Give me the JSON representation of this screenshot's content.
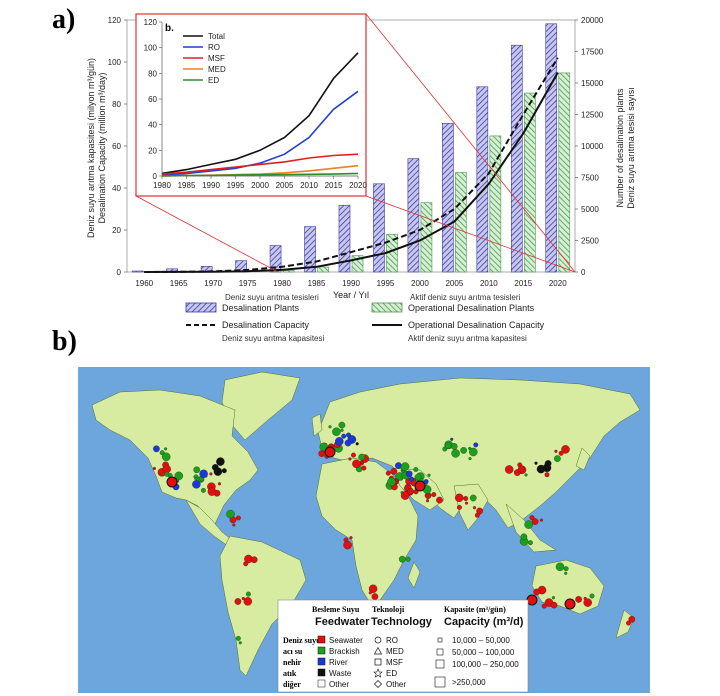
{
  "panel_a_label": "a)",
  "panel_b_label": "b)",
  "chart_data": [
    {
      "type": "bar",
      "panel": "a",
      "categories": [
        "1960",
        "1965",
        "1970",
        "1975",
        "1980",
        "1985",
        "1990",
        "1995",
        "2000",
        "2005",
        "2010",
        "2015",
        "2020"
      ],
      "xlabel": "Year / Yıl",
      "ylabel_left": [
        "Deniz suyu arıtma kapasitesi (milyon m³/gün)",
        "Desalination Capacity (million m³/day)"
      ],
      "ylabel_right": [
        "Number of desalination plants",
        "Deniz suyu arıtma tesisi sayısı"
      ],
      "ylim_left": [
        0,
        120
      ],
      "yticks_left": [
        0,
        20,
        40,
        60,
        80,
        100,
        120
      ],
      "ylim_right": [
        0,
        20000
      ],
      "yticks_right": [
        0,
        2500,
        5000,
        7500,
        10000,
        12500,
        15000,
        17500,
        20000
      ],
      "series": [
        {
          "name": "Desalination Plants",
          "name_tr": "Deniz suyu arıtma tesisleri",
          "type": "bar",
          "axis": "right",
          "color": "#3a3aa8",
          "values": [
            80,
            250,
            450,
            900,
            2100,
            3600,
            5300,
            7000,
            9000,
            11800,
            14700,
            18000,
            19700
          ]
        },
        {
          "name": "Operational Desalination Plants",
          "name_tr": "Aktif deniz suyu arıtma tesisleri",
          "type": "bar",
          "axis": "right",
          "color": "#4a9a4a",
          "values": [
            0,
            0,
            0,
            0,
            120,
            400,
            1300,
            3000,
            5500,
            7900,
            10800,
            14200,
            15800
          ]
        },
        {
          "name": "Desalination Capacity",
          "name_tr": "Deniz suyu arıtma kapasitesi",
          "type": "line",
          "style": "dashed",
          "axis": "left",
          "color": "#111111",
          "x": [
            1960,
            1965,
            1970,
            1975,
            1980,
            1985,
            1990,
            1995,
            2000,
            2005,
            2010,
            2015,
            2020
          ],
          "values": [
            0,
            0.1,
            0.3,
            1,
            2.5,
            5,
            9.5,
            14,
            20,
            30,
            47,
            75,
            102
          ]
        },
        {
          "name": "Operational Desalination Capacity",
          "name_tr": "Aktif deniz suyu arıtma kapasitesi",
          "type": "line",
          "style": "solid",
          "axis": "left",
          "color": "#111111",
          "x": [
            1960,
            1965,
            1970,
            1975,
            1980,
            1985,
            1990,
            1995,
            2000,
            2005,
            2010,
            2015,
            2020
          ],
          "values": [
            0,
            0.05,
            0.1,
            0.4,
            1,
            2.5,
            5.5,
            9,
            15,
            24,
            42,
            66,
            95
          ]
        }
      ],
      "legend_placement": "bottom"
    },
    {
      "type": "line",
      "panel": "inset",
      "title": "b.",
      "x": [
        1980,
        1985,
        1990,
        1995,
        2000,
        2005,
        2010,
        2015,
        2020
      ],
      "ylim": [
        0,
        120
      ],
      "yticks": [
        0,
        20,
        40,
        60,
        80,
        100,
        120
      ],
      "series": [
        {
          "name": "Total",
          "color": "#111111",
          "values": [
            2,
            5,
            9,
            13,
            20,
            30,
            47,
            76,
            96
          ]
        },
        {
          "name": "RO",
          "color": "#1f3fd6",
          "values": [
            0.5,
            2,
            4,
            6,
            10,
            17,
            30,
            52,
            66
          ]
        },
        {
          "name": "MSF",
          "color": "#e02020",
          "values": [
            1.5,
            3,
            5,
            7,
            9,
            11,
            14,
            16,
            17
          ]
        },
        {
          "name": "MED",
          "color": "#f07f1f",
          "values": [
            0,
            0.3,
            0.6,
            1,
            1.5,
            2.5,
            4,
            6,
            8
          ]
        },
        {
          "name": "ED",
          "color": "#2e8b2e",
          "values": [
            0.1,
            0.3,
            0.5,
            0.7,
            0.9,
            1.1,
            1.3,
            1.5,
            2
          ]
        }
      ]
    }
  ],
  "map": {
    "ocean_color": "#6da6dc",
    "land_color": "#d7eca0",
    "legend": {
      "feedwater_title_tr": "Besleme Suyu",
      "feedwater_title": "Feedwater",
      "technology_title_tr": "Teknoloji",
      "technology_title": "Technology",
      "capacity_title_tr": "Kapasite (m³/gün)",
      "capacity_title": "Capacity (m³/d)",
      "feedwater": [
        {
          "tr": "Deniz suyu",
          "en": "Seawater",
          "color": "#e01010"
        },
        {
          "tr": "acı su",
          "en": "Brackish",
          "color": "#1aa01a"
        },
        {
          "tr": "nehir",
          "en": "River",
          "color": "#1a3ad8"
        },
        {
          "tr": "atık",
          "en": "Waste",
          "color": "#111111"
        },
        {
          "tr": "diğer",
          "en": "Other",
          "color": "#ffffff"
        }
      ],
      "technology": [
        "RO",
        "MED",
        "MSF",
        "ED",
        "Other"
      ],
      "capacity": [
        "10,000 – 50,000",
        "50,000 – 100,000",
        "100,000 – 250,000",
        ">250,000"
      ]
    }
  }
}
